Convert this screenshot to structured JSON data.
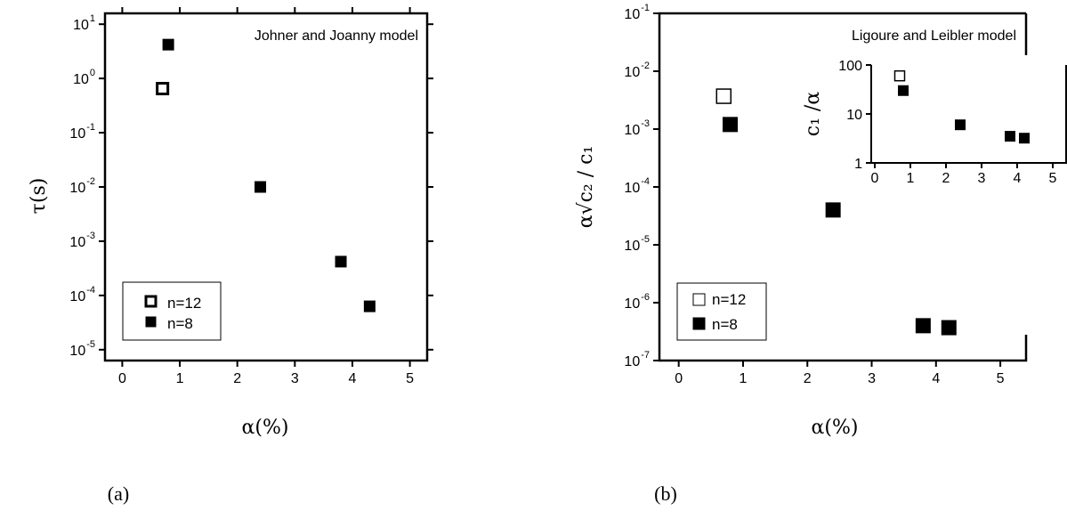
{
  "chart_data": [
    {
      "type": "scatter",
      "panel_label": "(a)",
      "annotation": "Johner and Joanny model",
      "xlabel": "α(%)",
      "ylabel": "τ(s)",
      "xlim": [
        -0.3,
        5.3
      ],
      "ylim_log10": [
        -5.2,
        1.2
      ],
      "yscale": "log",
      "x_ticks": [
        "0",
        "1",
        "2",
        "3",
        "4",
        "5"
      ],
      "y_ticks": [
        {
          "mant": "10",
          "exp": "1",
          "v": 1
        },
        {
          "mant": "10",
          "exp": "0",
          "v": 0
        },
        {
          "mant": "10",
          "exp": "-1",
          "v": -1
        },
        {
          "mant": "10",
          "exp": "-2",
          "v": -2
        },
        {
          "mant": "10",
          "exp": "-3",
          "v": -3
        },
        {
          "mant": "10",
          "exp": "-4",
          "v": -4
        },
        {
          "mant": "10",
          "exp": "-5",
          "v": -5
        }
      ],
      "legend_position": "bottom-left",
      "series": [
        {
          "name": "n=12",
          "marker": "open-square",
          "points": [
            [
              0.7,
              0.65
            ]
          ]
        },
        {
          "name": "n=8",
          "marker": "filled-square",
          "points": [
            [
              0.8,
              4.2
            ],
            [
              2.4,
              0.01
            ],
            [
              3.8,
              0.00042
            ],
            [
              4.3,
              6.3e-05
            ]
          ]
        }
      ]
    },
    {
      "type": "scatter",
      "panel_label": "(b)",
      "annotation": "Ligoure and Leibler model",
      "xlabel": "α(%)",
      "ylabel": "α√c₂ / c₁",
      "xlim": [
        -0.3,
        5.4
      ],
      "ylim_log10": [
        -7,
        -1
      ],
      "yscale": "log",
      "x_ticks": [
        "0",
        "1",
        "2",
        "3",
        "4",
        "5"
      ],
      "y_ticks": [
        {
          "mant": "10",
          "exp": "-1",
          "v": -1
        },
        {
          "mant": "10",
          "exp": "-2",
          "v": -2
        },
        {
          "mant": "10",
          "exp": "-3",
          "v": -3
        },
        {
          "mant": "10",
          "exp": "-4",
          "v": -4
        },
        {
          "mant": "10",
          "exp": "-5",
          "v": -5
        },
        {
          "mant": "10",
          "exp": "-6",
          "v": -6
        },
        {
          "mant": "10",
          "exp": "-7",
          "v": -7
        }
      ],
      "legend_position": "bottom-left",
      "series": [
        {
          "name": "n=12",
          "marker": "open-square",
          "points": [
            [
              0.7,
              0.0037
            ]
          ]
        },
        {
          "name": "n=8",
          "marker": "filled-square",
          "points": [
            [
              0.8,
              0.0012
            ],
            [
              2.4,
              4e-05
            ],
            [
              3.8,
              4e-07
            ],
            [
              4.2,
              3.7e-07
            ]
          ]
        }
      ],
      "inset": {
        "ylabel": "c₁ /α",
        "xlim": [
          -0.1,
          5.4
        ],
        "ylim_log10": [
          0,
          2
        ],
        "yscale": "log",
        "x_ticks": [
          "0",
          "1",
          "2",
          "3",
          "4",
          "5"
        ],
        "y_ticks": [
          {
            "label": "100",
            "v": 2
          },
          {
            "label": "10",
            "v": 1
          },
          {
            "label": "1",
            "v": 0
          }
        ],
        "series": [
          {
            "name": "n=12",
            "marker": "open-square",
            "points": [
              [
                0.7,
                60
              ]
            ]
          },
          {
            "name": "n=8",
            "marker": "filled-square",
            "points": [
              [
                0.8,
                30
              ],
              [
                2.4,
                6
              ],
              [
                3.8,
                3.5
              ],
              [
                4.2,
                3.2
              ]
            ]
          }
        ]
      }
    }
  ]
}
